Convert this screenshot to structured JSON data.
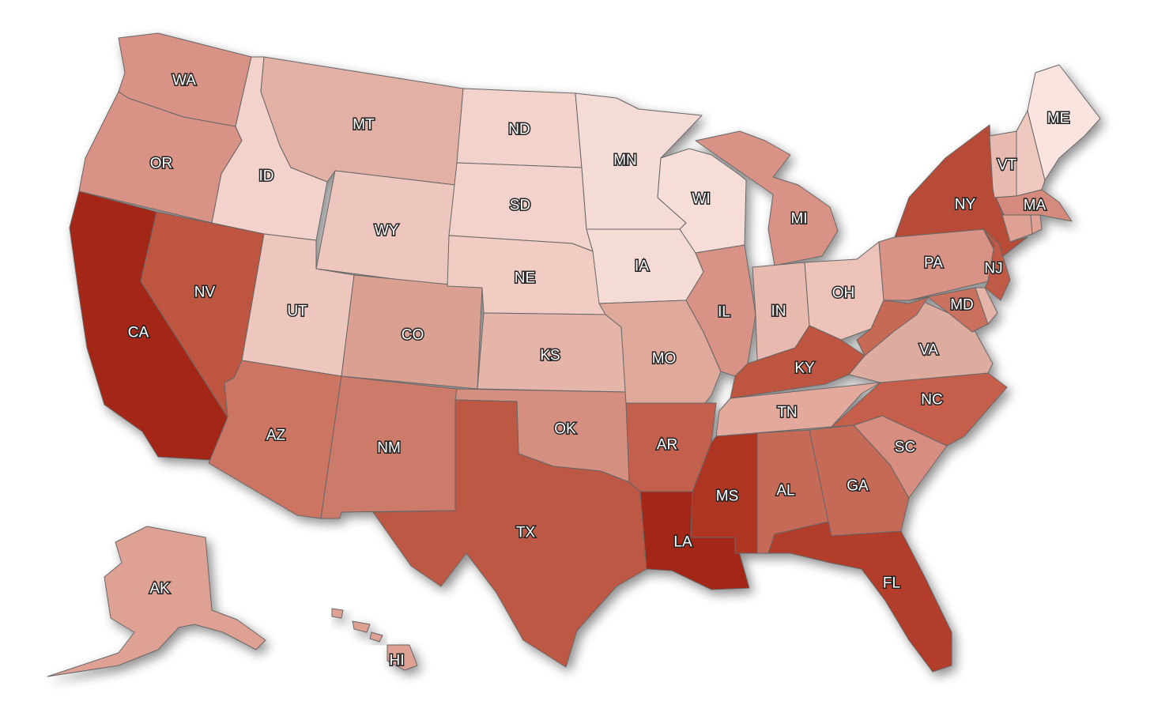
{
  "map": {
    "type": "choropleth",
    "region": "United States",
    "color_scale": {
      "low": "#fbe4df",
      "high": "#a32714"
    },
    "states": [
      {
        "code": "WA",
        "level": 3,
        "color": "#d99286"
      },
      {
        "code": "OR",
        "level": 3,
        "color": "#d99286"
      },
      {
        "code": "CA",
        "level": 9,
        "color": "#a32714"
      },
      {
        "code": "ID",
        "level": 1,
        "color": "#f3d2cb"
      },
      {
        "code": "NV",
        "level": 7,
        "color": "#bd5440"
      },
      {
        "code": "MT",
        "level": 2,
        "color": "#e3b0a6"
      },
      {
        "code": "WY",
        "level": 1,
        "color": "#edc6bd"
      },
      {
        "code": "UT",
        "level": 1,
        "color": "#edc6bd"
      },
      {
        "code": "AZ",
        "level": 5,
        "color": "#cc7463"
      },
      {
        "code": "CO",
        "level": 3,
        "color": "#daa092"
      },
      {
        "code": "NM",
        "level": 5,
        "color": "#cc7a6b"
      },
      {
        "code": "ND",
        "level": 1,
        "color": "#f2d2ca"
      },
      {
        "code": "SD",
        "level": 1,
        "color": "#f2d2ca"
      },
      {
        "code": "NE",
        "level": 1,
        "color": "#f0ccc3"
      },
      {
        "code": "KS",
        "level": 2,
        "color": "#e6b5aa"
      },
      {
        "code": "OK",
        "level": 4,
        "color": "#d48f81"
      },
      {
        "code": "TX",
        "level": 7,
        "color": "#bd5845"
      },
      {
        "code": "MN",
        "level": 0,
        "color": "#f5dbd5"
      },
      {
        "code": "IA",
        "level": 0,
        "color": "#f5dbd5"
      },
      {
        "code": "MO",
        "level": 3,
        "color": "#dfa99c"
      },
      {
        "code": "AR",
        "level": 6,
        "color": "#c25f4d"
      },
      {
        "code": "LA",
        "level": 9,
        "color": "#a32714"
      },
      {
        "code": "WI",
        "level": 0,
        "color": "#f6ddd7"
      },
      {
        "code": "IL",
        "level": 3,
        "color": "#d99286"
      },
      {
        "code": "MI",
        "level": 3,
        "color": "#d99286"
      },
      {
        "code": "IN",
        "level": 2,
        "color": "#e8b9ae"
      },
      {
        "code": "OH",
        "level": 2,
        "color": "#ecc2b9"
      },
      {
        "code": "KY",
        "level": 7,
        "color": "#bd5440"
      },
      {
        "code": "TN",
        "level": 2,
        "color": "#e2a99c"
      },
      {
        "code": "MS",
        "level": 8,
        "color": "#ad3522"
      },
      {
        "code": "AL",
        "level": 5,
        "color": "#c66b58"
      },
      {
        "code": "GA",
        "level": 5,
        "color": "#c66b58"
      },
      {
        "code": "FL",
        "level": 8,
        "color": "#b13d29"
      },
      {
        "code": "SC",
        "level": 4,
        "color": "#d78d7f"
      },
      {
        "code": "NC",
        "level": 6,
        "color": "#c55f4b"
      },
      {
        "code": "VA",
        "level": 3,
        "color": "#deab9f"
      },
      {
        "code": "WV",
        "level": 5,
        "color": "#c66a57"
      },
      {
        "code": "PA",
        "level": 3,
        "color": "#d99286"
      },
      {
        "code": "NY",
        "level": 7,
        "color": "#b84c38"
      },
      {
        "code": "NJ",
        "level": 6,
        "color": "#c05a46"
      },
      {
        "code": "MD",
        "level": 5,
        "color": "#c9705e"
      },
      {
        "code": "DE",
        "level": 2,
        "color": "#e6b5aa"
      },
      {
        "code": "VT",
        "level": 2,
        "color": "#e8b9ae"
      },
      {
        "code": "NH",
        "level": 1,
        "color": "#efc8c0"
      },
      {
        "code": "ME",
        "level": 0,
        "color": "#fbe4df"
      },
      {
        "code": "MA",
        "level": 4,
        "color": "#d48a7b"
      },
      {
        "code": "CT",
        "level": 3,
        "color": "#dea194"
      },
      {
        "code": "RI",
        "level": 3,
        "color": "#dea194"
      },
      {
        "code": "AK",
        "level": 3,
        "color": "#dea194"
      },
      {
        "code": "HI",
        "level": 3,
        "color": "#dea194"
      }
    ]
  }
}
